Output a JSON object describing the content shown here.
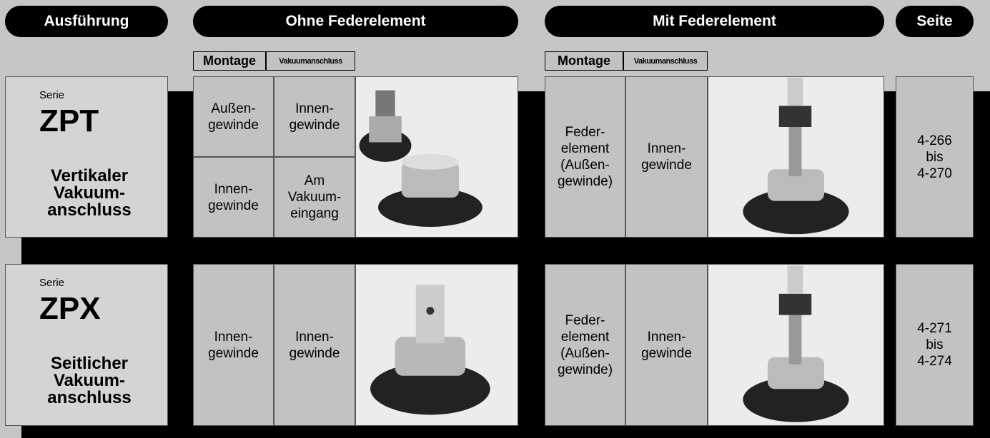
{
  "headers": [
    "Ausführung",
    "Ohne Federelement",
    "Mit Federelement",
    "Seite"
  ],
  "subheaders": {
    "montage": "Montage",
    "vakuum": "Vakuumanschluss"
  },
  "rows": [
    {
      "serie": "Serie",
      "name": "ZPT",
      "desc": "Vertikaler\nVakuum-\nanschluss",
      "ohne": [
        [
          "Außen-\ngewinde",
          "Innen-\ngewinde"
        ],
        [
          "Innen-\ngewinde",
          "Am\nVakuum-\neingang"
        ]
      ],
      "mit": [
        "Feder-\nelement\n(Außen-\ngewinde)",
        "Innen-\ngewinde"
      ],
      "seite": "4-266\nbis\n4-270"
    },
    {
      "serie": "Serie",
      "name": "ZPX",
      "desc": "Seitlicher\nVakuum-\nanschluss",
      "ohne": [
        [
          "Innen-\ngewinde",
          "Innen-\ngewinde"
        ]
      ],
      "mit": [
        "Feder-\nelement\n(Außen-\ngewinde)",
        "Innen-\ngewinde"
      ],
      "seite": "4-271\nbis\n4-274"
    }
  ]
}
